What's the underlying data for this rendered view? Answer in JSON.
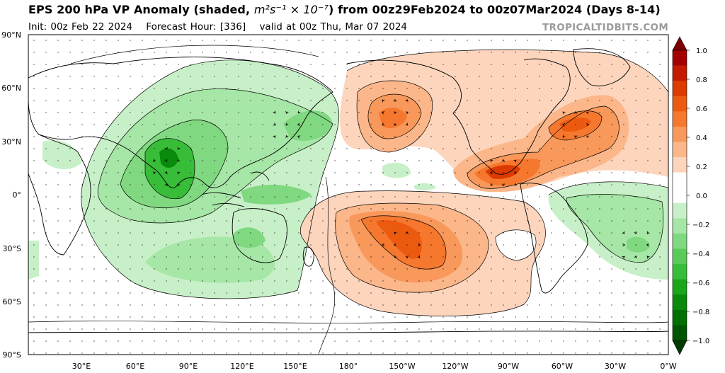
{
  "header": {
    "title_prefix": "EPS 200 hPa VP Anomaly (shaded, ",
    "title_units": "m²s⁻¹ × 10⁻⁷",
    "title_suffix": ") from 00z29Feb2024 to 00z07Mar2024 (Days 8-14)",
    "init": "Init: 00z Feb 22 2024",
    "forecast_hour": "Forecast Hour: [336]",
    "valid": "valid at 00z Thu, Mar 07 2024",
    "credit": "TROPICALTIDBITS.COM"
  },
  "map": {
    "lat_labels": [
      "90°N",
      "60°N",
      "30°N",
      "0°",
      "30°S",
      "60°S",
      "90°S"
    ],
    "lon_labels": [
      "30°E",
      "60°E",
      "90°E",
      "120°E",
      "150°E",
      "180°",
      "150°W",
      "120°W",
      "90°W",
      "60°W",
      "30°W",
      "0°W"
    ],
    "anomaly_centers": [
      {
        "label": "Indian Ocean / Maritime Continent",
        "sign": "negative",
        "peak": -0.5
      },
      {
        "label": "Western Pacific",
        "sign": "negative",
        "peak": -0.3
      },
      {
        "label": "South Atlantic",
        "sign": "negative",
        "peak": -0.3
      },
      {
        "label": "North Pacific",
        "sign": "positive",
        "peak": 0.4
      },
      {
        "label": "South Pacific",
        "sign": "positive",
        "peak": 0.5
      },
      {
        "label": "Caribbean / Gulf of Mexico",
        "sign": "positive",
        "peak": 0.5
      },
      {
        "label": "North Atlantic",
        "sign": "positive",
        "peak": 0.5
      }
    ]
  },
  "colorbar": {
    "ticks": [
      "1.0",
      "0.8",
      "0.6",
      "0.4",
      "0.2",
      "0.0",
      "−0.2",
      "−0.4",
      "−0.6",
      "−0.8",
      "−1.0"
    ],
    "colors_top_to_bottom": [
      "#7f0000",
      "#a50000",
      "#c41a00",
      "#dc3a00",
      "#ec5a10",
      "#f5782e",
      "#f8985a",
      "#fbb78a",
      "#fdd5bd",
      "#ffffff",
      "#ffffff",
      "#c8f0c8",
      "#a6e6a6",
      "#80d880",
      "#5acb5a",
      "#38bd38",
      "#1aa51a",
      "#0a8a0a",
      "#007000",
      "#005500",
      "#003b00"
    ]
  },
  "colors": {
    "ocean": "#ffffff",
    "land_line": "#000000",
    "frame": "#000000",
    "credit": "#9a9a9a"
  }
}
